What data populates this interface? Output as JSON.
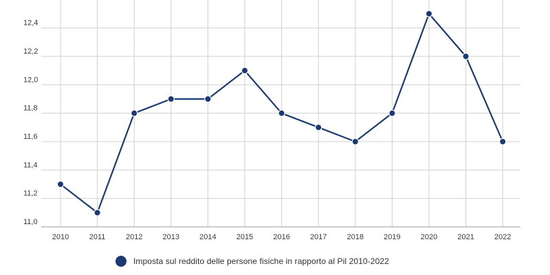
{
  "chart_data": {
    "type": "line",
    "x": [
      "2010",
      "2011",
      "2012",
      "2013",
      "2014",
      "2015",
      "2016",
      "2017",
      "2018",
      "2019",
      "2020",
      "2021",
      "2022"
    ],
    "series": [
      {
        "name": "Imposta sul reddito delle persone fisiche in rapporto al Pil 2010-2022",
        "values": [
          11.3,
          11.1,
          11.8,
          11.9,
          11.9,
          12.1,
          11.8,
          11.7,
          11.6,
          11.8,
          12.5,
          12.2,
          11.6
        ],
        "color": "#1b3a73"
      }
    ],
    "y_ticks": [
      "11,0",
      "11,2",
      "11,4",
      "11,6",
      "11,8",
      "12,0",
      "12,2",
      "12,4"
    ],
    "ylim": [
      11.0,
      12.5
    ],
    "grid": true,
    "legend_position": "bottom",
    "colors": {
      "line": "#1b3a73",
      "grid": "#d0d0d0",
      "axis": "#9a9a9a"
    }
  }
}
